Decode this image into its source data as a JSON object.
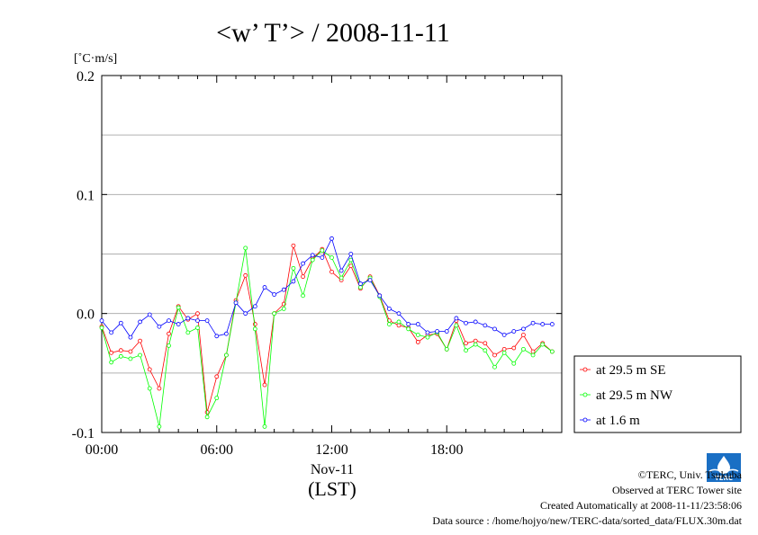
{
  "chart_data": {
    "type": "line",
    "title": "<w’ T’> / 2008-11-11",
    "ylabel": "[˚C·m/s]",
    "xlabel_lines": [
      "Nov-11",
      "(LST)"
    ],
    "xlim": [
      0,
      24
    ],
    "ylim": [
      -0.1,
      0.2
    ],
    "x_ticks": [
      0,
      6,
      12,
      18
    ],
    "x_tick_labels": [
      "00:00",
      "06:00",
      "12:00",
      "18:00"
    ],
    "y_ticks": [
      -0.1,
      0.0,
      0.1,
      0.2
    ],
    "y_tick_labels": [
      "-0.1",
      "0.0",
      "0.1",
      "0.2"
    ],
    "grid": "horizontal",
    "legend": "bottom-right outside",
    "series": [
      {
        "name": "at 29.5 m SE",
        "color": "#ff0000",
        "x": [
          0,
          0.5,
          1,
          1.5,
          2,
          2.5,
          3,
          3.5,
          4,
          4.5,
          5,
          5.5,
          6,
          6.5,
          7,
          7.5,
          8,
          8.5,
          9,
          9.5,
          10,
          10.5,
          11,
          11.5,
          12,
          12.5,
          13,
          13.5,
          14,
          14.5,
          15,
          15.5,
          16,
          16.5,
          17,
          17.5,
          18,
          18.5,
          19,
          19.5,
          20,
          20.5,
          21,
          21.5,
          22,
          22.5,
          23,
          23.5
        ],
        "values": [
          -0.011,
          -0.033,
          -0.031,
          -0.032,
          -0.023,
          -0.047,
          -0.063,
          -0.017,
          0.006,
          -0.005,
          0.0,
          -0.083,
          -0.053,
          -0.035,
          0.011,
          0.032,
          -0.009,
          -0.06,
          0.0,
          0.008,
          0.057,
          0.031,
          0.046,
          0.054,
          0.035,
          0.028,
          0.04,
          0.021,
          0.031,
          0.015,
          -0.006,
          -0.01,
          -0.012,
          -0.024,
          -0.018,
          -0.017,
          -0.03,
          -0.006,
          -0.025,
          -0.023,
          -0.025,
          -0.035,
          -0.03,
          -0.029,
          -0.018,
          -0.032,
          -0.025,
          -0.032
        ]
      },
      {
        "name": "at 29.5 m NW",
        "color": "#00ff00",
        "x": [
          0,
          0.5,
          1,
          1.5,
          2,
          2.5,
          3,
          3.5,
          4,
          4.5,
          5,
          5.5,
          6,
          6.5,
          7,
          7.5,
          8,
          8.5,
          9,
          9.5,
          10,
          10.5,
          11,
          11.5,
          12,
          12.5,
          13,
          13.5,
          14,
          14.5,
          15,
          15.5,
          16,
          16.5,
          17,
          17.5,
          18,
          18.5,
          19,
          19.5,
          20,
          20.5,
          21,
          21.5,
          22,
          22.5,
          23,
          23.5
        ],
        "values": [
          -0.012,
          -0.041,
          -0.036,
          -0.038,
          -0.035,
          -0.063,
          -0.095,
          -0.027,
          0.005,
          -0.016,
          -0.012,
          -0.087,
          -0.071,
          -0.035,
          0.009,
          0.055,
          -0.013,
          -0.095,
          0.0,
          0.004,
          0.038,
          0.015,
          0.045,
          0.053,
          0.047,
          0.03,
          0.045,
          0.022,
          0.03,
          0.014,
          -0.009,
          -0.007,
          -0.013,
          -0.018,
          -0.02,
          -0.016,
          -0.03,
          -0.01,
          -0.031,
          -0.026,
          -0.031,
          -0.045,
          -0.033,
          -0.042,
          -0.03,
          -0.035,
          -0.026,
          -0.032
        ]
      },
      {
        "name": "at 1.6 m",
        "color": "#0000ff",
        "x": [
          0,
          0.5,
          1,
          1.5,
          2,
          2.5,
          3,
          3.5,
          4,
          4.5,
          5,
          5.5,
          6,
          6.5,
          7,
          7.5,
          8,
          8.5,
          9,
          9.5,
          10,
          10.5,
          11,
          11.5,
          12,
          12.5,
          13,
          13.5,
          14,
          14.5,
          15,
          15.5,
          16,
          16.5,
          17,
          17.5,
          18,
          18.5,
          19,
          19.5,
          20,
          20.5,
          21,
          21.5,
          22,
          22.5,
          23,
          23.5
        ],
        "values": [
          -0.006,
          -0.016,
          -0.008,
          -0.02,
          -0.007,
          -0.001,
          -0.011,
          -0.006,
          -0.009,
          -0.004,
          -0.006,
          -0.006,
          -0.019,
          -0.017,
          0.009,
          0.0,
          0.006,
          0.022,
          0.016,
          0.02,
          0.027,
          0.042,
          0.049,
          0.047,
          0.063,
          0.036,
          0.05,
          0.025,
          0.028,
          0.015,
          0.004,
          0.0,
          -0.009,
          -0.009,
          -0.016,
          -0.015,
          -0.015,
          -0.004,
          -0.008,
          -0.007,
          -0.01,
          -0.013,
          -0.018,
          -0.015,
          -0.013,
          -0.008,
          -0.009,
          -0.009
        ]
      }
    ]
  },
  "footer": {
    "copyright": "©TERC, Univ. Tsukuba",
    "observed": "Observed at TERC Tower site",
    "created": "Created Automatically at 2008-11-11/23:58:06",
    "source": "Data source : /home/hojyo/new/TERC-data/sorted_data/FLUX.30m.dat",
    "logo_text": "TERC"
  }
}
